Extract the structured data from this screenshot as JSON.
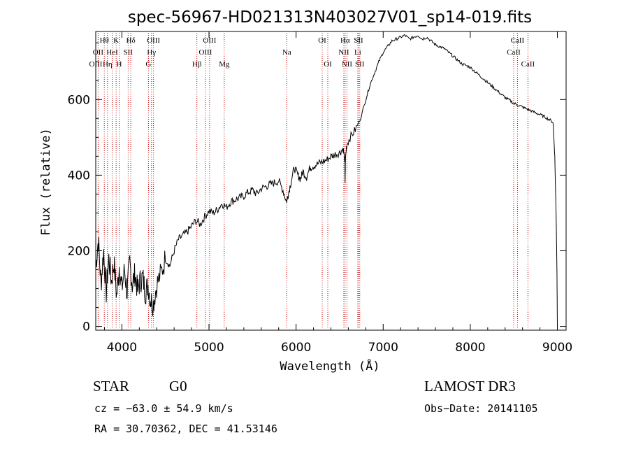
{
  "chart_data": {
    "type": "line",
    "title": "spec-56967-HD021313N403027V01_sp14-019.fits",
    "xlabel": "Wavelength (Å)",
    "ylabel": "Flux (relative)",
    "xlim": [
      3700,
      9100
    ],
    "ylim": [
      -10,
      780
    ],
    "xticks": [
      4000,
      5000,
      6000,
      7000,
      8000,
      9000
    ],
    "yticks": [
      0,
      200,
      400,
      600
    ],
    "series": [
      {
        "name": "spectrum",
        "x": [
          3700,
          3730,
          3760,
          3790,
          3820,
          3850,
          3880,
          3910,
          3940,
          3970,
          4000,
          4030,
          4060,
          4090,
          4120,
          4150,
          4180,
          4210,
          4240,
          4270,
          4300,
          4330,
          4360,
          4400,
          4450,
          4500,
          4550,
          4600,
          4650,
          4700,
          4750,
          4800,
          4850,
          4900,
          4950,
          5000,
          5050,
          5100,
          5150,
          5200,
          5250,
          5300,
          5350,
          5400,
          5450,
          5500,
          5550,
          5600,
          5650,
          5700,
          5750,
          5800,
          5850,
          5890,
          5910,
          5940,
          5980,
          6020,
          6050,
          6080,
          6120,
          6160,
          6200,
          6250,
          6300,
          6350,
          6400,
          6450,
          6500,
          6540,
          6560,
          6563,
          6566,
          6580,
          6620,
          6680,
          6740,
          6800,
          6850,
          6900,
          6950,
          7000,
          7050,
          7100,
          7150,
          7200,
          7250,
          7300,
          7350,
          7400,
          7450,
          7500,
          7550,
          7600,
          7650,
          7700,
          7750,
          7800,
          7850,
          7900,
          7950,
          8000,
          8050,
          8100,
          8150,
          8200,
          8250,
          8300,
          8350,
          8400,
          8450,
          8500,
          8550,
          8600,
          8650,
          8700,
          8750,
          8800,
          8850,
          8900,
          8950,
          8970,
          8985,
          8995,
          9000
        ],
        "values": [
          160,
          230,
          110,
          200,
          90,
          180,
          120,
          170,
          80,
          160,
          100,
          150,
          90,
          170,
          110,
          140,
          95,
          120,
          130,
          90,
          110,
          70,
          60,
          110,
          140,
          180,
          160,
          200,
          230,
          240,
          250,
          265,
          280,
          270,
          290,
          305,
          300,
          310,
          325,
          315,
          330,
          335,
          340,
          345,
          355,
          360,
          350,
          365,
          370,
          375,
          380,
          385,
          360,
          330,
          350,
          380,
          420,
          400,
          390,
          410,
          395,
          420,
          425,
          430,
          435,
          440,
          450,
          455,
          460,
          470,
          440,
          370,
          440,
          480,
          500,
          520,
          550,
          600,
          640,
          670,
          700,
          725,
          740,
          755,
          760,
          765,
          770,
          760,
          765,
          770,
          760,
          765,
          755,
          745,
          740,
          735,
          725,
          715,
          705,
          695,
          690,
          685,
          675,
          665,
          655,
          645,
          635,
          625,
          615,
          605,
          598,
          590,
          585,
          580,
          575,
          570,
          565,
          560,
          555,
          548,
          540,
          450,
          300,
          150,
          0
        ]
      }
    ],
    "spectral_lines": [
      {
        "label": "Hθ",
        "wavelength": 3798,
        "row": 1
      },
      {
        "label": "OII",
        "wavelength": 3727,
        "row": 2
      },
      {
        "label": "OIII",
        "wavelength": 3700,
        "row": 3
      },
      {
        "label": "Hη",
        "wavelength": 3835,
        "row": 3
      },
      {
        "label": "K",
        "wavelength": 3934,
        "row": 1
      },
      {
        "label": "HeI",
        "wavelength": 3889,
        "row": 2
      },
      {
        "label": "H",
        "wavelength": 3969,
        "row": 3
      },
      {
        "label": "SII",
        "wavelength": 4072,
        "row": 2
      },
      {
        "label": "Hδ",
        "wavelength": 4102,
        "row": 1
      },
      {
        "label": "OIII",
        "wavelength": 4363,
        "row": 1
      },
      {
        "label": "Hγ",
        "wavelength": 4340,
        "row": 2
      },
      {
        "label": "G",
        "wavelength": 4305,
        "row": 3
      },
      {
        "label": "OIII",
        "wavelength": 5007,
        "row": 1
      },
      {
        "label": "OIII",
        "wavelength": 4959,
        "row": 2
      },
      {
        "label": "Hβ",
        "wavelength": 4861,
        "row": 3
      },
      {
        "label": "Mg",
        "wavelength": 5175,
        "row": 3
      },
      {
        "label": "Na",
        "wavelength": 5893,
        "row": 2
      },
      {
        "label": "OI",
        "wavelength": 6300,
        "row": 1
      },
      {
        "label": "OI",
        "wavelength": 6364,
        "row": 3
      },
      {
        "label": "Hα",
        "wavelength": 6563,
        "row": 1
      },
      {
        "label": "NII",
        "wavelength": 6548,
        "row": 2
      },
      {
        "label": "NII",
        "wavelength": 6584,
        "row": 3
      },
      {
        "label": "SII",
        "wavelength": 6717,
        "row": 1
      },
      {
        "label": "Li",
        "wavelength": 6708,
        "row": 2
      },
      {
        "label": "SII",
        "wavelength": 6731,
        "row": 3
      },
      {
        "label": "CaII",
        "wavelength": 8542,
        "row": 1
      },
      {
        "label": "CaII",
        "wavelength": 8498,
        "row": 2
      },
      {
        "label": "CaII",
        "wavelength": 8662,
        "row": 3
      }
    ]
  },
  "info": {
    "class": "STAR",
    "subclass": "G0",
    "survey": "LAMOST DR3",
    "cz": "cz = −63.0 ± 54.9 km/s",
    "obs_date": "Obs−Date: 20141105",
    "coords": "RA =  30.70362, DEC =  41.53146"
  },
  "colors": {
    "spectrum": "#000000",
    "line_marker": "#cc0000"
  }
}
